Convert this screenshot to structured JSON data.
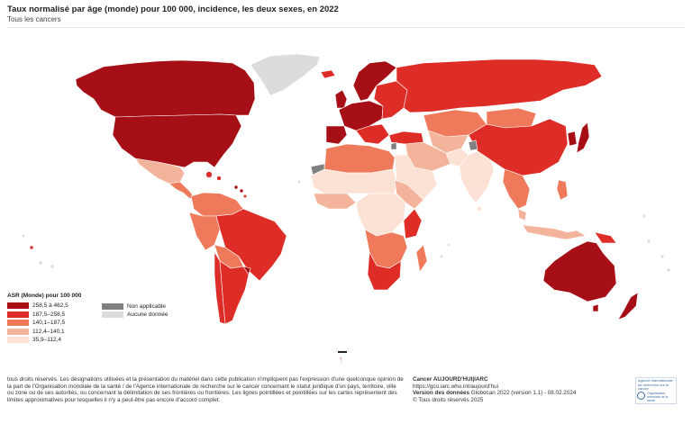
{
  "title": "Taux normalisé par âge (monde) pour 100 000, incidence, les deux sexes, en 2022",
  "subtitle": "Tous les cancers",
  "colors": {
    "c1": "#a50f15",
    "c2": "#de2d26",
    "c3": "#ee7a5b",
    "c4": "#f4b39b",
    "c5": "#fbe2d5",
    "na": "#808080",
    "nodata": "#dcdcdc"
  },
  "legend": {
    "title": "ASR (Monde) pour 100 000",
    "classes": [
      {
        "label": "258,5 à 462,5",
        "color": "#a50f15"
      },
      {
        "label": "187,5–258,5",
        "color": "#de2d26"
      },
      {
        "label": "140,1–187,5",
        "color": "#ee7a5b"
      },
      {
        "label": "112,4–140,1",
        "color": "#f4b39b"
      },
      {
        "label": "35,9–112,4",
        "color": "#fbe2d5"
      }
    ],
    "extra": [
      {
        "label": "Non applicable",
        "color": "#808080"
      },
      {
        "label": "Aucune donnée",
        "color": "#dcdcdc"
      }
    ]
  },
  "disclaimer": "tous droits réservés. Les désignations utilisées et la présentation du matériel dans cette publication n'impliquent pas l'expression d'une quelconque opinion de la part de l'Organisation mondiale de la santé / de l'Agence internationale de recherche sur le cancer concernant le statut juridique d'un pays, territoire, ville ou zone ou de ses autorités, ou concernant la délimitation de ses frontières ou frontières. Les lignes pointillées et pointillées sur les cartes représentent des limites approximatives pour lesquelles il n'y a peut-être pas encore d'accord complet.",
  "credits": {
    "name": "Cancer AUJOURD'HUI|IARC",
    "url": "https://gco.iarc.who.int/aujourd'hui",
    "version_label": "Version des données",
    "version_value": "Globocan 2022 (version 1.1) - 08.02.2024",
    "copyright": "© Tous droits réservés 2025"
  },
  "logo": {
    "agency": "Agence internationale de recherche sur le cancer",
    "who": "Organisation mondiale de la santé"
  }
}
